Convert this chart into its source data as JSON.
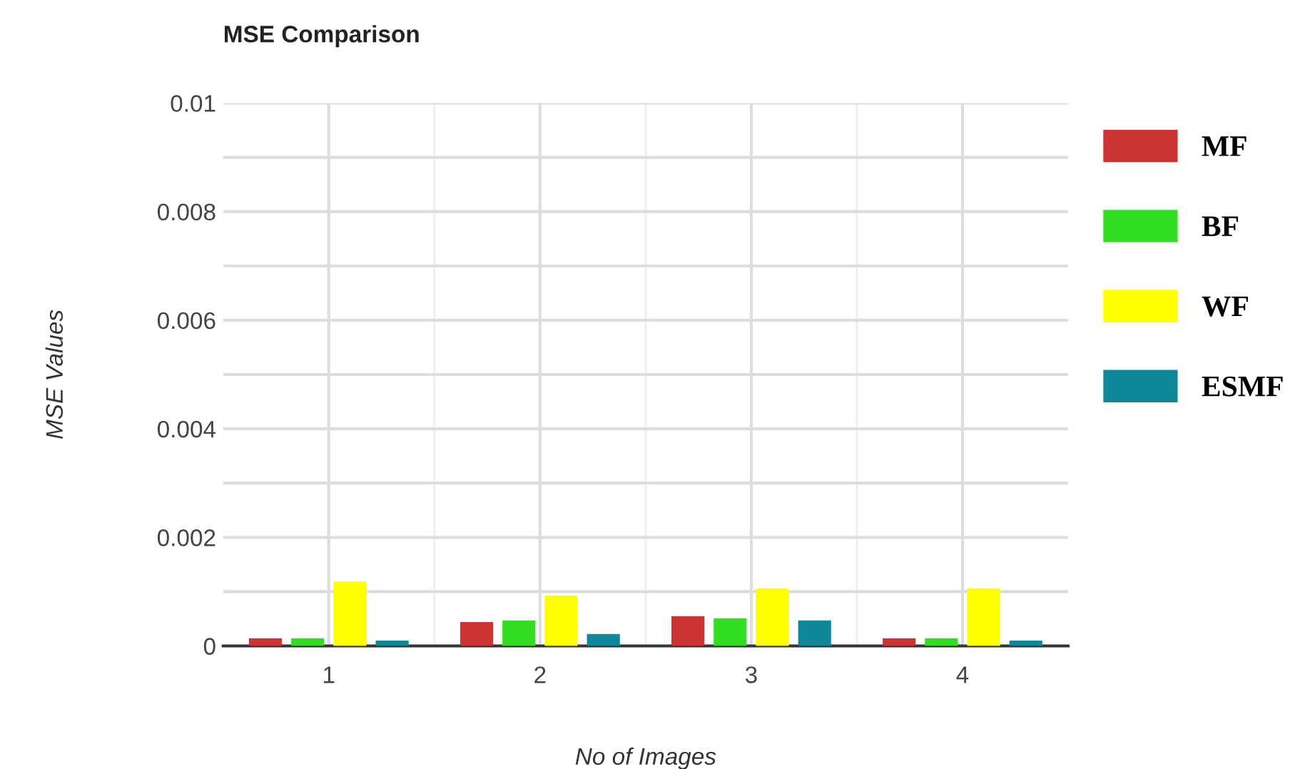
{
  "chart_data": {
    "type": "bar",
    "title": "MSE Comparison",
    "xlabel": "No of Images",
    "ylabel": "MSE Values",
    "categories": [
      "1",
      "2",
      "3",
      "4"
    ],
    "series": [
      {
        "name": "MF",
        "color": "#cc3333",
        "values": [
          0.00014,
          0.00044,
          0.00055,
          0.00014
        ]
      },
      {
        "name": "BF",
        "color": "#33dd22",
        "values": [
          0.00014,
          0.00047,
          0.00051,
          0.00014
        ]
      },
      {
        "name": "WF",
        "color": "#ffff00",
        "values": [
          0.00119,
          0.00093,
          0.00106,
          0.00106
        ]
      },
      {
        "name": "ESMF",
        "color": "#118899",
        "values": [
          0.0001,
          0.00022,
          0.00047,
          0.0001
        ]
      }
    ],
    "ylim": [
      0,
      0.01
    ],
    "yticks": [
      0,
      {
        "value": 0.001,
        "label": null
      },
      0.002,
      {
        "value": 0.003,
        "label": null
      },
      0.004,
      {
        "value": 0.005,
        "label": null
      },
      0.006,
      {
        "value": 0.007,
        "label": null
      },
      0.008,
      {
        "value": 0.009,
        "label": null
      },
      0.01
    ],
    "grid": true,
    "legend": "right"
  }
}
